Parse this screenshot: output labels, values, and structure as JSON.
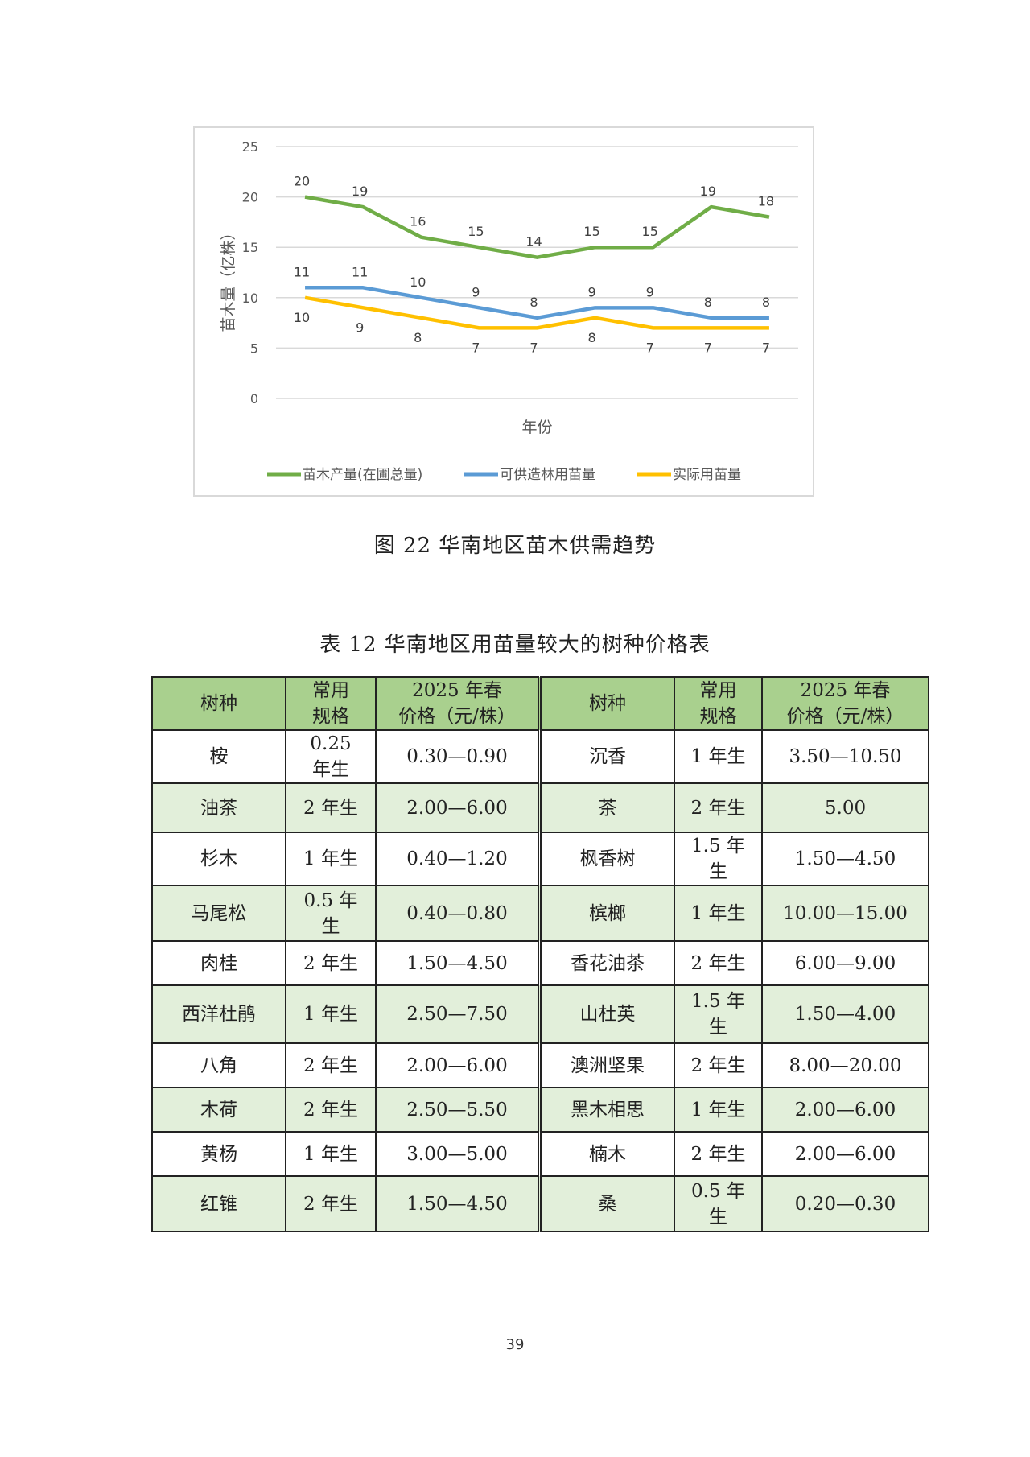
{
  "chart_data": {
    "type": "line",
    "xlabel": "年份",
    "ylabel": "苗木量（亿株）",
    "ylim": [
      0,
      25
    ],
    "yticks": [
      0,
      5,
      10,
      15,
      20,
      25
    ],
    "grid": true,
    "legend": "bottom",
    "series": [
      {
        "name": "苗木产量(在圃总量)",
        "color": "#70ad47",
        "values": [
          20,
          19,
          16,
          15,
          14,
          15,
          15,
          19,
          18
        ]
      },
      {
        "name": "可供造林用苗量",
        "color": "#5b9bd5",
        "values": [
          11,
          11,
          10,
          9,
          8,
          9,
          9,
          8,
          8
        ]
      },
      {
        "name": "实际用苗量",
        "color": "#ffc000",
        "values": [
          10,
          9,
          8,
          7,
          7,
          8,
          7,
          7,
          7
        ]
      }
    ]
  },
  "figure_caption": "图 22  华南地区苗木供需趋势",
  "table": {
    "title": "表 12  华南地区用苗量较大的树种价格表",
    "headers": [
      "树种",
      "常用\n规格",
      "2025 年春\n价格（元/株）",
      "树种",
      "常用\n规格",
      "2025 年春\n价格（元/株）"
    ],
    "rows": [
      [
        "桉",
        "0.25\n年生",
        "0.30—0.90",
        "沉香",
        "1 年生",
        "3.50—10.50"
      ],
      [
        "油茶",
        "2 年生",
        "2.00—6.00",
        "茶",
        "2 年生",
        "5.00"
      ],
      [
        "杉木",
        "1 年生",
        "0.40—1.20",
        "枫香树",
        "1.5 年\n生",
        "1.50—4.50"
      ],
      [
        "马尾松",
        "0.5 年\n生",
        "0.40—0.80",
        "槟榔",
        "1 年生",
        "10.00—15.00"
      ],
      [
        "肉桂",
        "2 年生",
        "1.50—4.50",
        "香花油茶",
        "2 年生",
        "6.00—9.00"
      ],
      [
        "西洋杜鹃",
        "1 年生",
        "2.50—7.50",
        "山杜英",
        "1.5 年\n生",
        "1.50—4.00"
      ],
      [
        "八角",
        "2 年生",
        "2.00—6.00",
        "澳洲坚果",
        "2 年生",
        "8.00—20.00"
      ],
      [
        "木荷",
        "2 年生",
        "2.50—5.50",
        "黑木相思",
        "1 年生",
        "2.00—6.00"
      ],
      [
        "黄杨",
        "1 年生",
        "3.00—5.00",
        "楠木",
        "2 年生",
        "2.00—6.00"
      ],
      [
        "红锥",
        "2 年生",
        "1.50—4.50",
        "桑",
        "0.5 年\n生",
        "0.20—0.30"
      ]
    ]
  },
  "page_number": "39"
}
